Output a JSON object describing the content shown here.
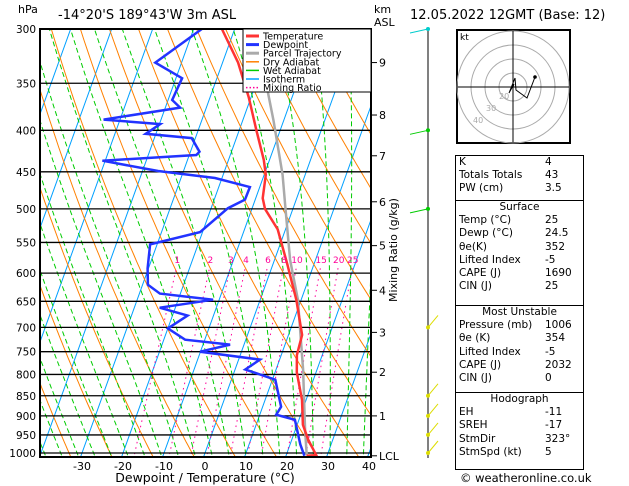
{
  "header": {
    "pressure_unit": "hPa",
    "location": "-14°20'S  189°43'W  3m  ASL",
    "height_unit": "km",
    "height_ref": "ASL",
    "datetime": "12.05.2022 12GMT (Base: 12)"
  },
  "chart_data": {
    "type": "line",
    "subtype": "skew-T log-P",
    "xlabel": "Dewpoint / Temperature (°C)",
    "ylabel_left": "hPa",
    "ylabel_right": "Mixing Ratio (g/kg)",
    "xlim": [
      -40,
      40
    ],
    "ylim": [
      1000,
      300
    ],
    "x_ticks": [
      -30,
      -20,
      -10,
      0,
      10,
      20,
      30,
      40
    ],
    "pressure_ticks": [
      300,
      350,
      400,
      450,
      500,
      550,
      600,
      650,
      700,
      750,
      800,
      850,
      900,
      950,
      1000
    ],
    "km_ticks": [
      {
        "km": "9",
        "p": 330
      },
      {
        "km": "8",
        "p": 383
      },
      {
        "km": "7",
        "p": 430
      },
      {
        "km": "6",
        "p": 490
      },
      {
        "km": "5",
        "p": 555
      },
      {
        "km": "4",
        "p": 630
      },
      {
        "km": "3",
        "p": 710
      },
      {
        "km": "2",
        "p": 795
      },
      {
        "km": "1",
        "p": 900
      },
      {
        "km": "LCL",
        "p": 1008
      }
    ],
    "mixing_ratio_labels": [
      "1",
      "2",
      "3",
      "4",
      "6",
      "8",
      "10",
      "15",
      "20",
      "25"
    ],
    "mixing_ratio_values": [
      1,
      2,
      3,
      4,
      6,
      8,
      10,
      15,
      20,
      25
    ],
    "legend": [
      "Temperature",
      "Dewpoint",
      "Parcel Trajectory",
      "Dry Adiabat",
      "Wet Adiabat",
      "Isotherm",
      "Mixing Ratio"
    ],
    "legend_placement": "top-right",
    "colors": {
      "temperature": "#ff3333",
      "dewpoint": "#2233ff",
      "parcel": "#aaaaaa",
      "dry_adiabat": "#ff8000",
      "wet_adiabat": "#00cc00",
      "isotherm": "#00a0ff",
      "mixing_ratio": "#ff0099"
    },
    "series": [
      {
        "name": "Temperature",
        "p": [
          300,
          330,
          364,
          400,
          435,
          454,
          485,
          500,
          530,
          585,
          647,
          715,
          757,
          795,
          860,
          923,
          963,
          1006,
          1008
        ],
        "t": [
          -33.1,
          -26.2,
          -20.6,
          -15.8,
          -11.4,
          -9.6,
          -8.3,
          -6.8,
          -1.9,
          3.5,
          8.8,
          13.3,
          13.8,
          15.3,
          19.0,
          21.4,
          24.0,
          27.3,
          25
        ]
      },
      {
        "name": "Dewpoint",
        "p": [
          300,
          330,
          345,
          367,
          375,
          388,
          393,
          404,
          409,
          425,
          429,
          436,
          449,
          458,
          470,
          487,
          499,
          534,
          553,
          592,
          620,
          636,
          647,
          662,
          677,
          702,
          725,
          735,
          750,
          767,
          789,
          812,
          877,
          897,
          910,
          976,
          1008
        ],
        "t": [
          -38,
          -46.4,
          -38.5,
          -39,
          -36.4,
          -54,
          -39.8,
          -42.5,
          -30.9,
          -27.8,
          -28.3,
          -50.7,
          -36.2,
          -21.7,
          -12.4,
          -12.5,
          -15.9,
          -20.6,
          -31.7,
          -30.2,
          -28.7,
          -25,
          -11.5,
          -23.8,
          -16.3,
          -20,
          -14.8,
          -3.4,
          -10.1,
          5.2,
          2.5,
          10.7,
          14.5,
          14.0,
          19.0,
          22.5,
          24.5
        ]
      },
      {
        "name": "Parcel Trajectory",
        "p": [
          1006,
          937,
          789,
          647,
          578,
          500,
          454,
          389,
          357
        ],
        "t": [
          25,
          22.4,
          16.6,
          9.2,
          3.8,
          -1.8,
          -5.5,
          -12.5,
          -16.6
        ]
      }
    ]
  },
  "hodograph": {
    "unit_label": "kt",
    "ring_labels": [
      "10",
      "20",
      "30",
      "40"
    ]
  },
  "indices": {
    "rows": [
      {
        "label": "K",
        "value": "4"
      },
      {
        "label": "Totals Totals",
        "value": "43"
      },
      {
        "label": "PW (cm)",
        "value": "3.5"
      }
    ]
  },
  "surface": {
    "title": "Surface",
    "rows": [
      {
        "label": "Temp (°C)",
        "value": "25"
      },
      {
        "label": "Dewp (°C)",
        "value": "24.5"
      },
      {
        "label": "θe(K)",
        "value": "352"
      },
      {
        "label": "Lifted Index",
        "value": "-5"
      },
      {
        "label": "CAPE (J)",
        "value": "1690"
      },
      {
        "label": "CIN (J)",
        "value": "25"
      }
    ]
  },
  "most_unstable": {
    "title": "Most Unstable",
    "rows": [
      {
        "label": "Pressure (mb)",
        "value": "1006"
      },
      {
        "label": "θe (K)",
        "value": "354"
      },
      {
        "label": "Lifted Index",
        "value": "-5"
      },
      {
        "label": "CAPE (J)",
        "value": "2032"
      },
      {
        "label": "CIN (J)",
        "value": "0"
      }
    ]
  },
  "hodograph_table": {
    "title": "Hodograph",
    "rows": [
      {
        "label": "EH",
        "value": "-11"
      },
      {
        "label": "SREH",
        "value": "-17"
      },
      {
        "label": "StmDir",
        "value": "323°"
      },
      {
        "label": "StmSpd (kt)",
        "value": "5"
      }
    ]
  },
  "footer": {
    "copyright": "© weatheronline.co.uk"
  }
}
